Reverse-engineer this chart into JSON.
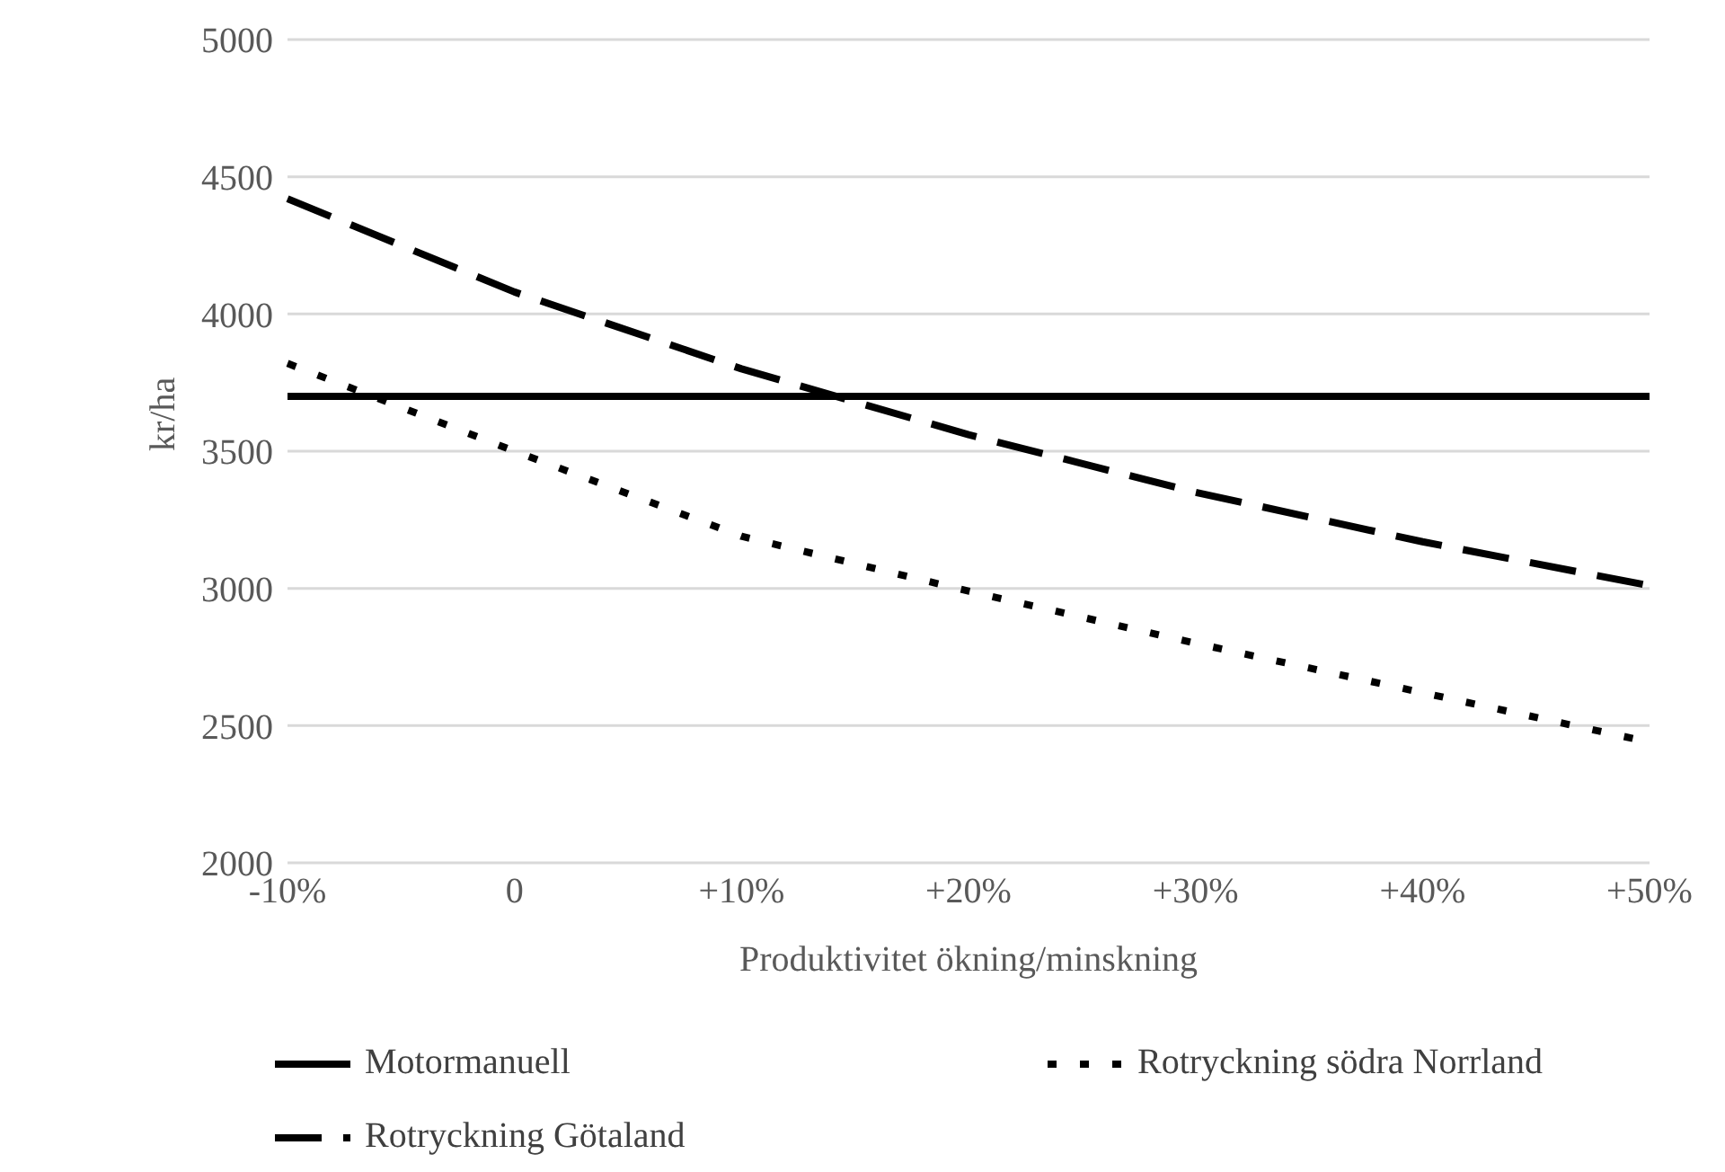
{
  "chart_data": {
    "type": "line",
    "xlabel": "Produktivitet ökning/minskning",
    "ylabel": "kr/ha",
    "categories": [
      "-10%",
      "0",
      "+10%",
      "+20%",
      "+30%",
      "+40%",
      "+50%"
    ],
    "series": [
      {
        "name": "Motormanuell",
        "color": "#000000",
        "line_style": "solid",
        "values": [
          3700,
          3700,
          3700,
          3700,
          3700,
          3700,
          3700
        ]
      },
      {
        "name": "Rotryckning södra Norrland",
        "color": "#000000",
        "line_style": "dotted",
        "values": [
          3820,
          3500,
          3190,
          2990,
          2800,
          2620,
          2440
        ]
      },
      {
        "name": "Rotryckning Götaland",
        "color": "#000000",
        "line_style": "dashed",
        "values": [
          4420,
          4080,
          3800,
          3560,
          3350,
          3170,
          3010
        ]
      }
    ],
    "ylim": [
      2000,
      5000
    ],
    "yticks": [
      2000,
      2500,
      3000,
      3500,
      4000,
      4500,
      5000
    ],
    "grid": "y",
    "legend": "bottom",
    "marker": "none"
  }
}
